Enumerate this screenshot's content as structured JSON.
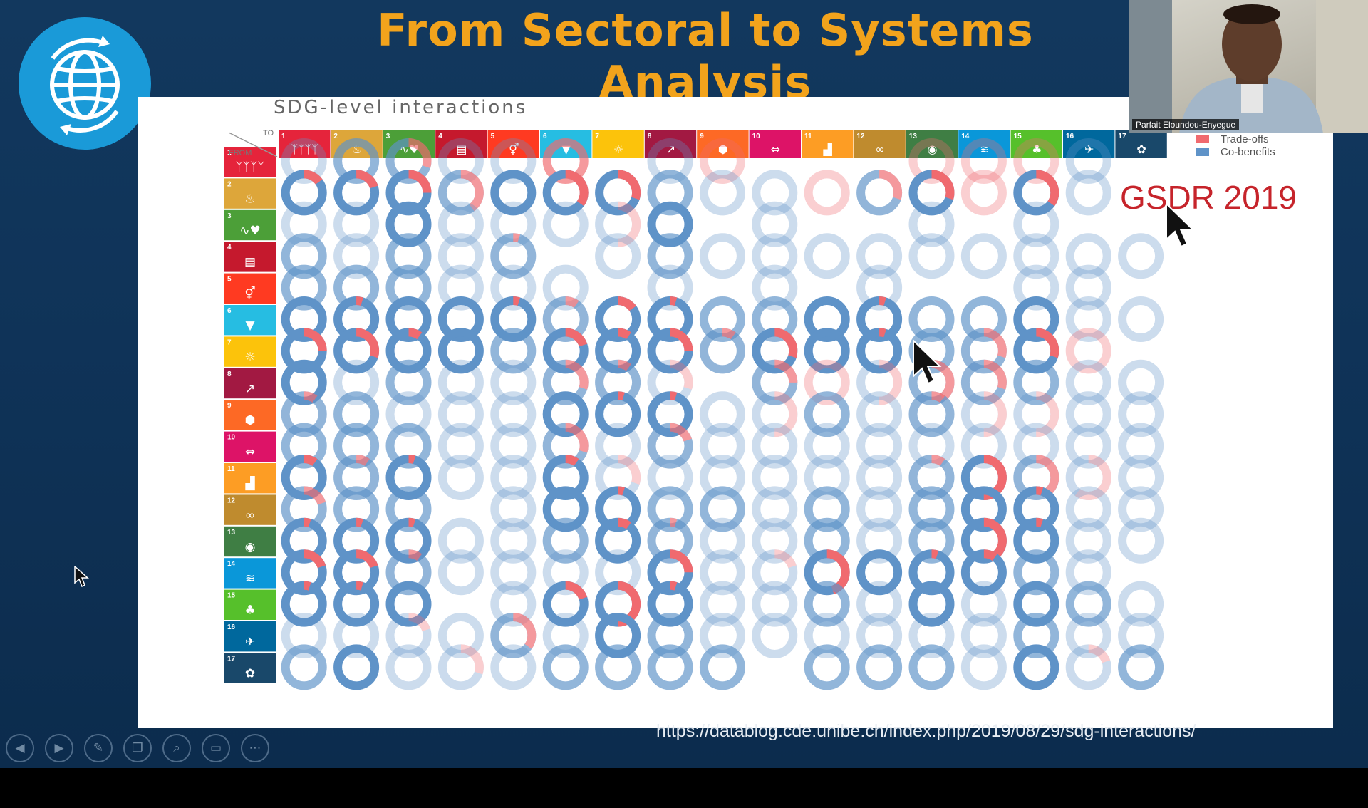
{
  "slide": {
    "title": "From Sectoral to Systems Analysis",
    "chart_title": "SDG-level interactions",
    "corner_labels": {
      "to": "TO",
      "from": "FROM"
    },
    "legend": [
      {
        "label": "Trade-offs",
        "color": "#f06a6f"
      },
      {
        "label": "Co-benefits",
        "color": "#5f93c8"
      }
    ],
    "report_label": "GSDR 2019",
    "source_url": "https://datablog.cde.unibe.ch/index.php/2019/08/29/sdg-interactions/"
  },
  "video": {
    "speaker_name": "Parfait Eloundou-Enyegue"
  },
  "toolbar": [
    "previous",
    "next",
    "pen",
    "slides",
    "zoom",
    "subtitles",
    "more"
  ],
  "sdg_goals": [
    {
      "number": "1",
      "color": "#e5243b",
      "glyph": "ᛉᛉᛉᛉ"
    },
    {
      "number": "2",
      "color": "#dda63a",
      "glyph": "♨"
    },
    {
      "number": "3",
      "color": "#4c9f38",
      "glyph": "∿♥"
    },
    {
      "number": "4",
      "color": "#c5192d",
      "glyph": "▤"
    },
    {
      "number": "5",
      "color": "#ff3a21",
      "glyph": "⚥"
    },
    {
      "number": "6",
      "color": "#26bde2",
      "glyph": "▼"
    },
    {
      "number": "7",
      "color": "#fcc30b",
      "glyph": "☼"
    },
    {
      "number": "8",
      "color": "#a21942",
      "glyph": "↗"
    },
    {
      "number": "9",
      "color": "#fd6925",
      "glyph": "⬢"
    },
    {
      "number": "10",
      "color": "#dd1367",
      "glyph": "⇔"
    },
    {
      "number": "11",
      "color": "#fd9d24",
      "glyph": "▟"
    },
    {
      "number": "12",
      "color": "#bf8b2e",
      "glyph": "∞"
    },
    {
      "number": "13",
      "color": "#3f7e44",
      "glyph": "◉"
    },
    {
      "number": "14",
      "color": "#0a97d9",
      "glyph": "≋"
    },
    {
      "number": "15",
      "color": "#56c02b",
      "glyph": "♣"
    },
    {
      "number": "16",
      "color": "#00689d",
      "glyph": "✈"
    },
    {
      "number": "17",
      "color": "#19486a",
      "glyph": "✿"
    }
  ],
  "chart_data": {
    "type": "heatmap",
    "title": "SDG-level interactions",
    "row_axis": "FROM",
    "column_axis": "TO",
    "goals": [
      "1",
      "2",
      "3",
      "4",
      "5",
      "6",
      "7",
      "8",
      "9",
      "10",
      "11",
      "12",
      "13",
      "14",
      "15",
      "16",
      "17"
    ],
    "series": [
      {
        "name": "Trade-offs",
        "color": "#f06a6f"
      },
      {
        "name": "Co-benefits",
        "color": "#5f93c8"
      }
    ],
    "cell_encoding": "each cell: [total interaction strength 0-3 (0 = none), trade-off share 0-1]",
    "cells": [
      [
        [
          1,
          0.0
        ],
        [
          2,
          0.0
        ],
        [
          2,
          0.3
        ],
        [
          1,
          0.0
        ],
        [
          1,
          0.0
        ],
        [
          2,
          1.0
        ],
        [
          0,
          0
        ],
        [
          1,
          0.0
        ],
        [
          1,
          1.0
        ],
        [
          0,
          0
        ],
        [
          0,
          0
        ],
        [
          0,
          0
        ],
        [
          1,
          1.0
        ],
        [
          1,
          1.0
        ],
        [
          1,
          1.0
        ],
        [
          1,
          0.0
        ],
        [
          0,
          0
        ]
      ],
      [
        [
          3,
          0.15
        ],
        [
          3,
          0.2
        ],
        [
          3,
          0.25
        ],
        [
          2,
          0.4
        ],
        [
          3,
          0.0
        ],
        [
          3,
          0.35
        ],
        [
          3,
          0.3
        ],
        [
          2,
          0.0
        ],
        [
          1,
          0.0
        ],
        [
          1,
          0.0
        ],
        [
          1,
          1.0
        ],
        [
          2,
          0.3
        ],
        [
          3,
          0.3
        ],
        [
          1,
          1.0
        ],
        [
          3,
          0.35
        ],
        [
          1,
          0.0
        ],
        [
          0,
          0
        ]
      ],
      [
        [
          1,
          0.0
        ],
        [
          1,
          0.0
        ],
        [
          3,
          0.0
        ],
        [
          1,
          0.0
        ],
        [
          1,
          0.0
        ],
        [
          1,
          0.0
        ],
        [
          1,
          0.5
        ],
        [
          3,
          0.0
        ],
        [
          0,
          0
        ],
        [
          1,
          0.0
        ],
        [
          0,
          0
        ],
        [
          0,
          0
        ],
        [
          1,
          0.0
        ],
        [
          0,
          0
        ],
        [
          1,
          0.0
        ],
        [
          0,
          0
        ],
        [
          0,
          0
        ]
      ],
      [
        [
          2,
          0.0
        ],
        [
          1,
          0.0
        ],
        [
          2,
          0.0
        ],
        [
          1,
          0.0
        ],
        [
          2,
          0.05
        ],
        [
          0,
          0
        ],
        [
          1,
          0.0
        ],
        [
          2,
          0.0
        ],
        [
          1,
          0.0
        ],
        [
          1,
          0.0
        ],
        [
          1,
          0.0
        ],
        [
          1,
          0.0
        ],
        [
          1,
          0.0
        ],
        [
          1,
          0.0
        ],
        [
          1,
          0.0
        ],
        [
          1,
          0.0
        ],
        [
          1,
          0.0
        ]
      ],
      [
        [
          2,
          0.0
        ],
        [
          2,
          0.0
        ],
        [
          2,
          0.0
        ],
        [
          1,
          0.0
        ],
        [
          1,
          0.0
        ],
        [
          1,
          0.0
        ],
        [
          0,
          0
        ],
        [
          1,
          0.0
        ],
        [
          0,
          0
        ],
        [
          1,
          0.0
        ],
        [
          0,
          0
        ],
        [
          1,
          0.0
        ],
        [
          0,
          0
        ],
        [
          0,
          0
        ],
        [
          1,
          0.0
        ],
        [
          1,
          0.0
        ],
        [
          0,
          0
        ]
      ],
      [
        [
          3,
          0.0
        ],
        [
          3,
          0.05
        ],
        [
          3,
          0.0
        ],
        [
          3,
          0.0
        ],
        [
          3,
          0.05
        ],
        [
          2,
          0.1
        ],
        [
          3,
          0.15
        ],
        [
          3,
          0.05
        ],
        [
          2,
          0.0
        ],
        [
          2,
          0.0
        ],
        [
          3,
          0.0
        ],
        [
          3,
          0.05
        ],
        [
          2,
          0.0
        ],
        [
          2,
          0.0
        ],
        [
          3,
          0.0
        ],
        [
          1,
          0.0
        ],
        [
          1,
          0.0
        ]
      ],
      [
        [
          3,
          0.25
        ],
        [
          3,
          0.3
        ],
        [
          3,
          0.1
        ],
        [
          3,
          0.0
        ],
        [
          2,
          0.0
        ],
        [
          3,
          0.2
        ],
        [
          3,
          0.1
        ],
        [
          3,
          0.25
        ],
        [
          2,
          0.1
        ],
        [
          3,
          0.3
        ],
        [
          3,
          0.0
        ],
        [
          3,
          0.05
        ],
        [
          2,
          0.0
        ],
        [
          2,
          0.3
        ],
        [
          3,
          0.3
        ],
        [
          1,
          1.0
        ],
        [
          0,
          0
        ]
      ],
      [
        [
          3,
          0.0
        ],
        [
          1,
          0.0
        ],
        [
          2,
          0.0
        ],
        [
          1,
          0.0
        ],
        [
          1,
          0.0
        ],
        [
          2,
          0.3
        ],
        [
          2,
          0.1
        ],
        [
          1,
          0.3
        ],
        [
          0,
          0
        ],
        [
          2,
          0.25
        ],
        [
          1,
          1.0
        ],
        [
          1,
          0.5
        ],
        [
          2,
          0.4
        ],
        [
          2,
          0.3
        ],
        [
          2,
          0.0
        ],
        [
          1,
          0.0
        ],
        [
          1,
          0.0
        ]
      ],
      [
        [
          2,
          0.1
        ],
        [
          2,
          0.0
        ],
        [
          1,
          0.0
        ],
        [
          1,
          0.0
        ],
        [
          1,
          0.0
        ],
        [
          3,
          0.0
        ],
        [
          3,
          0.05
        ],
        [
          3,
          0.05
        ],
        [
          1,
          0.0
        ],
        [
          1,
          0.5
        ],
        [
          2,
          0.0
        ],
        [
          1,
          0.0
        ],
        [
          2,
          0.1
        ],
        [
          1,
          0.5
        ],
        [
          1,
          0.5
        ],
        [
          1,
          0.0
        ],
        [
          1,
          0.0
        ]
      ],
      [
        [
          2,
          0.0
        ],
        [
          2,
          0.0
        ],
        [
          2,
          0.0
        ],
        [
          1,
          0.0
        ],
        [
          1,
          0.0
        ],
        [
          2,
          0.3
        ],
        [
          1,
          0.0
        ],
        [
          2,
          0.2
        ],
        [
          1,
          0.0
        ],
        [
          1,
          0.0
        ],
        [
          1,
          0.0
        ],
        [
          1,
          0.0
        ],
        [
          1,
          0.0
        ],
        [
          1,
          0.0
        ],
        [
          1,
          0.0
        ],
        [
          1,
          0.0
        ],
        [
          1,
          0.0
        ]
      ],
      [
        [
          3,
          0.1
        ],
        [
          2,
          0.1
        ],
        [
          3,
          0.05
        ],
        [
          1,
          0.0
        ],
        [
          1,
          0.0
        ],
        [
          3,
          0.1
        ],
        [
          1,
          0.3
        ],
        [
          1,
          0.0
        ],
        [
          1,
          0.0
        ],
        [
          1,
          0.0
        ],
        [
          1,
          0.0
        ],
        [
          1,
          0.0
        ],
        [
          2,
          0.1
        ],
        [
          3,
          0.5
        ],
        [
          2,
          0.4
        ],
        [
          1,
          0.6
        ],
        [
          1,
          0.0
        ]
      ],
      [
        [
          2,
          0.2
        ],
        [
          2,
          0.0
        ],
        [
          2,
          0.0
        ],
        [
          0,
          0
        ],
        [
          1,
          0.0
        ],
        [
          3,
          0.0
        ],
        [
          3,
          0.05
        ],
        [
          2,
          0.0
        ],
        [
          2,
          0.0
        ],
        [
          1,
          0.0
        ],
        [
          2,
          0.0
        ],
        [
          1,
          0.0
        ],
        [
          2,
          0.0
        ],
        [
          3,
          0.0
        ],
        [
          3,
          0.05
        ],
        [
          1,
          0.0
        ],
        [
          1,
          0.0
        ]
      ],
      [
        [
          3,
          0.05
        ],
        [
          3,
          0.05
        ],
        [
          3,
          0.05
        ],
        [
          1,
          0.0
        ],
        [
          1,
          0.0
        ],
        [
          2,
          0.0
        ],
        [
          3,
          0.1
        ],
        [
          2,
          0.05
        ],
        [
          1,
          0.0
        ],
        [
          1,
          0.0
        ],
        [
          2,
          0.0
        ],
        [
          1,
          0.0
        ],
        [
          2,
          0.0
        ],
        [
          3,
          0.4
        ],
        [
          3,
          0.05
        ],
        [
          1,
          0.0
        ],
        [
          1,
          0.0
        ]
      ],
      [
        [
          3,
          0.2
        ],
        [
          3,
          0.2
        ],
        [
          2,
          0.1
        ],
        [
          1,
          0.0
        ],
        [
          1,
          0.0
        ],
        [
          1,
          0.0
        ],
        [
          1,
          0.0
        ],
        [
          3,
          0.25
        ],
        [
          1,
          0.0
        ],
        [
          1,
          0.2
        ],
        [
          3,
          0.45
        ],
        [
          3,
          0.0
        ],
        [
          3,
          0.05
        ],
        [
          3,
          0.1
        ],
        [
          2,
          0.0
        ],
        [
          1,
          0.0
        ],
        [
          0,
          0
        ]
      ],
      [
        [
          3,
          0.05
        ],
        [
          3,
          0.05
        ],
        [
          3,
          0.0
        ],
        [
          0,
          0
        ],
        [
          1,
          0.0
        ],
        [
          3,
          0.2
        ],
        [
          3,
          0.5
        ],
        [
          3,
          0.05
        ],
        [
          1,
          0.0
        ],
        [
          1,
          0.0
        ],
        [
          2,
          0.0
        ],
        [
          1,
          0.0
        ],
        [
          3,
          0.0
        ],
        [
          1,
          0.0
        ],
        [
          3,
          0.0
        ],
        [
          2,
          0.0
        ],
        [
          1,
          0.0
        ]
      ],
      [
        [
          1,
          0.0
        ],
        [
          1,
          0.0
        ],
        [
          1,
          0.2
        ],
        [
          1,
          0.0
        ],
        [
          2,
          0.35
        ],
        [
          1,
          0.0
        ],
        [
          3,
          0.0
        ],
        [
          2,
          0.0
        ],
        [
          1,
          0.0
        ],
        [
          1,
          0.0
        ],
        [
          1,
          0.0
        ],
        [
          1,
          0.0
        ],
        [
          1,
          0.0
        ],
        [
          1,
          0.0
        ],
        [
          2,
          0.0
        ],
        [
          1,
          0.0
        ],
        [
          1,
          0.0
        ]
      ],
      [
        [
          2,
          0.0
        ],
        [
          3,
          0.0
        ],
        [
          1,
          0.0
        ],
        [
          1,
          0.3
        ],
        [
          1,
          0.0
        ],
        [
          2,
          0.0
        ],
        [
          2,
          0.0
        ],
        [
          2,
          0.0
        ],
        [
          2,
          0.0
        ],
        [
          0,
          0
        ],
        [
          2,
          0.0
        ],
        [
          2,
          0.0
        ],
        [
          2,
          0.0
        ],
        [
          1,
          0.0
        ],
        [
          3,
          0.0
        ],
        [
          1,
          0.2
        ],
        [
          2,
          0.0
        ]
      ]
    ]
  }
}
